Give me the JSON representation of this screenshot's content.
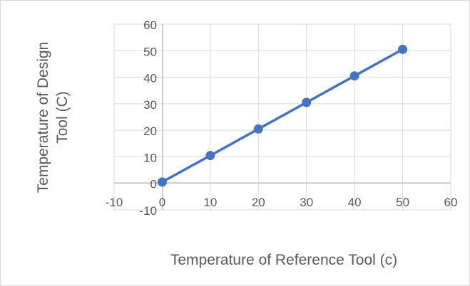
{
  "chart_data": {
    "type": "line",
    "title": "",
    "xlabel": "Temperature of Reference Tool (c)",
    "ylabel_lines": [
      "Temperature of Design",
      "Tool (C)"
    ],
    "xlim": [
      -10,
      60
    ],
    "ylim": [
      -10,
      60
    ],
    "x_ticks": [
      -10,
      0,
      10,
      20,
      30,
      40,
      50,
      60
    ],
    "y_ticks": [
      -10,
      0,
      10,
      20,
      30,
      40,
      50,
      60
    ],
    "grid": true,
    "legend": "none",
    "series": [
      {
        "x": [
          0,
          10,
          20,
          30,
          40,
          50
        ],
        "y": [
          0.5,
          10.5,
          20.5,
          30.5,
          40.5,
          50.5
        ],
        "color": "#4472C4"
      }
    ]
  }
}
